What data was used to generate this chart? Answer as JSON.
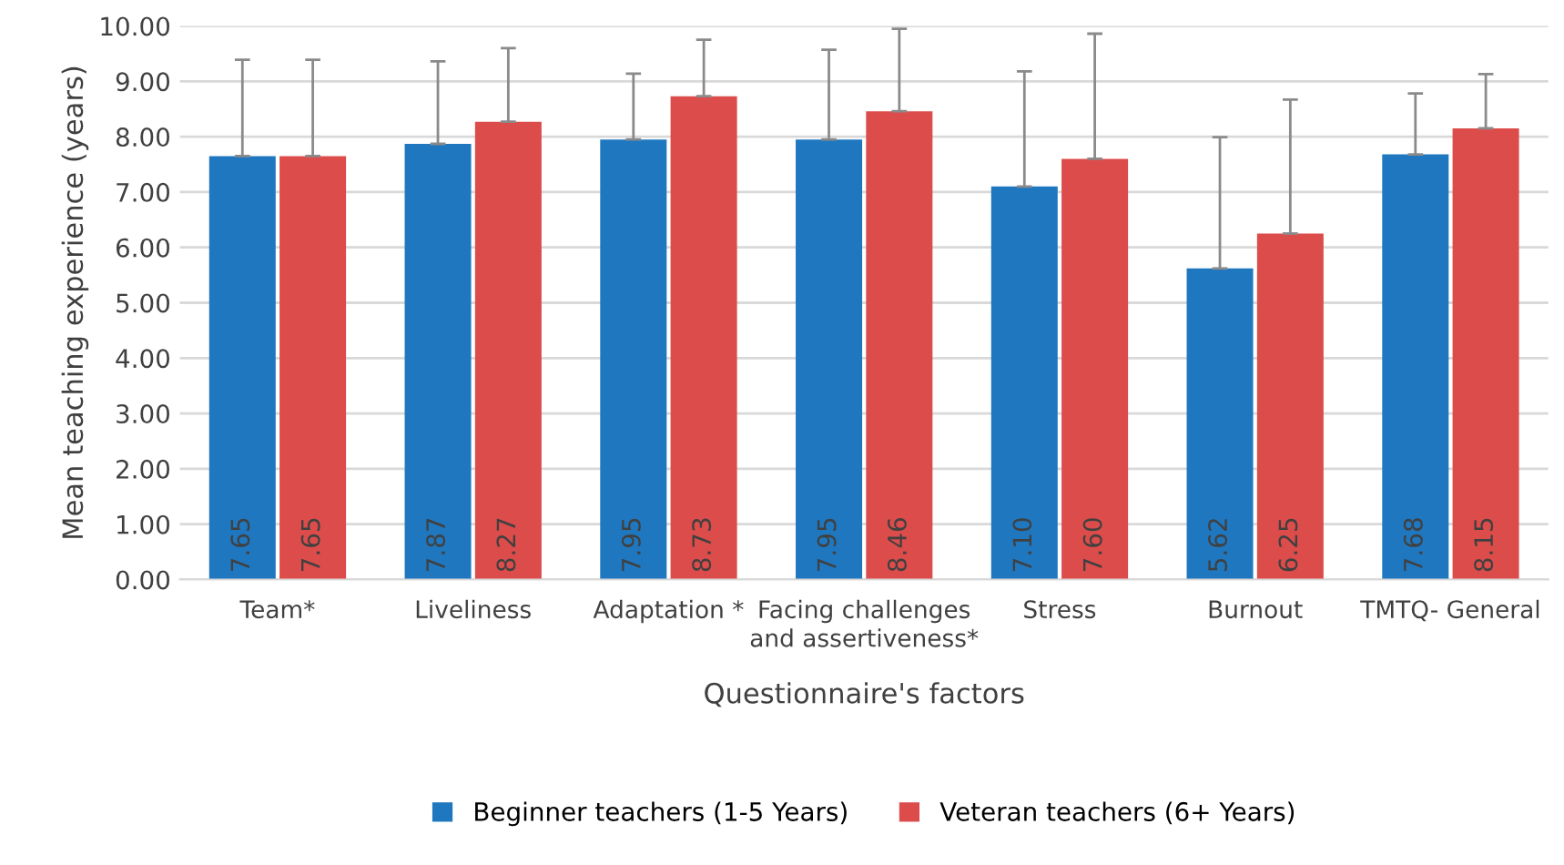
{
  "chart_data": {
    "type": "bar",
    "xlabel": "Questionnaire's factors",
    "ylabel": "Mean teaching experience (years)",
    "categories": [
      "Team*",
      "Liveliness",
      "Adaptation *",
      "Facing challenges and assertiveness*",
      "Stress",
      "Burnout",
      "TMTQ- General"
    ],
    "series": [
      {
        "name": "Beginner teachers (1-5 Years)",
        "color": "#1f77c0",
        "values": [
          7.65,
          7.87,
          7.95,
          7.95,
          7.1,
          5.62,
          7.68
        ],
        "value_labels": [
          "7.65",
          "7.87",
          "7.95",
          "7.95",
          "7.10",
          "5.62",
          "7.68"
        ],
        "errors": [
          [
            7.65,
            9.39
          ],
          [
            7.87,
            9.36
          ],
          [
            7.95,
            9.14
          ],
          [
            7.95,
            9.57
          ],
          [
            7.1,
            9.18
          ],
          [
            5.62,
            7.99
          ],
          [
            7.68,
            8.78
          ]
        ]
      },
      {
        "name": "Veteran teachers (6+ Years)",
        "color": "#dc4c4a",
        "values": [
          7.65,
          8.27,
          8.73,
          8.46,
          7.6,
          6.25,
          8.15
        ],
        "value_labels": [
          "7.65",
          "8.27",
          "8.73",
          "8.46",
          "7.60",
          "6.25",
          "8.15"
        ],
        "errors": [
          [
            7.65,
            9.39
          ],
          [
            8.27,
            9.6
          ],
          [
            8.73,
            9.75
          ],
          [
            8.46,
            9.95
          ],
          [
            7.6,
            9.86
          ],
          [
            6.25,
            8.67
          ],
          [
            8.15,
            9.13
          ]
        ]
      }
    ],
    "ylim": [
      0,
      10
    ],
    "yticks": [
      {
        "value": 0,
        "label": "0.00"
      },
      {
        "value": 1,
        "label": "1.00"
      },
      {
        "value": 2,
        "label": "2.00"
      },
      {
        "value": 3,
        "label": "3.00"
      },
      {
        "value": 4,
        "label": "4.00"
      },
      {
        "value": 5,
        "label": "5.00"
      },
      {
        "value": 6,
        "label": "6.00"
      },
      {
        "value": 7,
        "label": "7.00"
      },
      {
        "value": 8,
        "label": "8.00"
      },
      {
        "value": 9,
        "label": "9.00"
      },
      {
        "value": 10,
        "label": "10.00"
      }
    ],
    "grid": "y",
    "legend": "bottom"
  }
}
